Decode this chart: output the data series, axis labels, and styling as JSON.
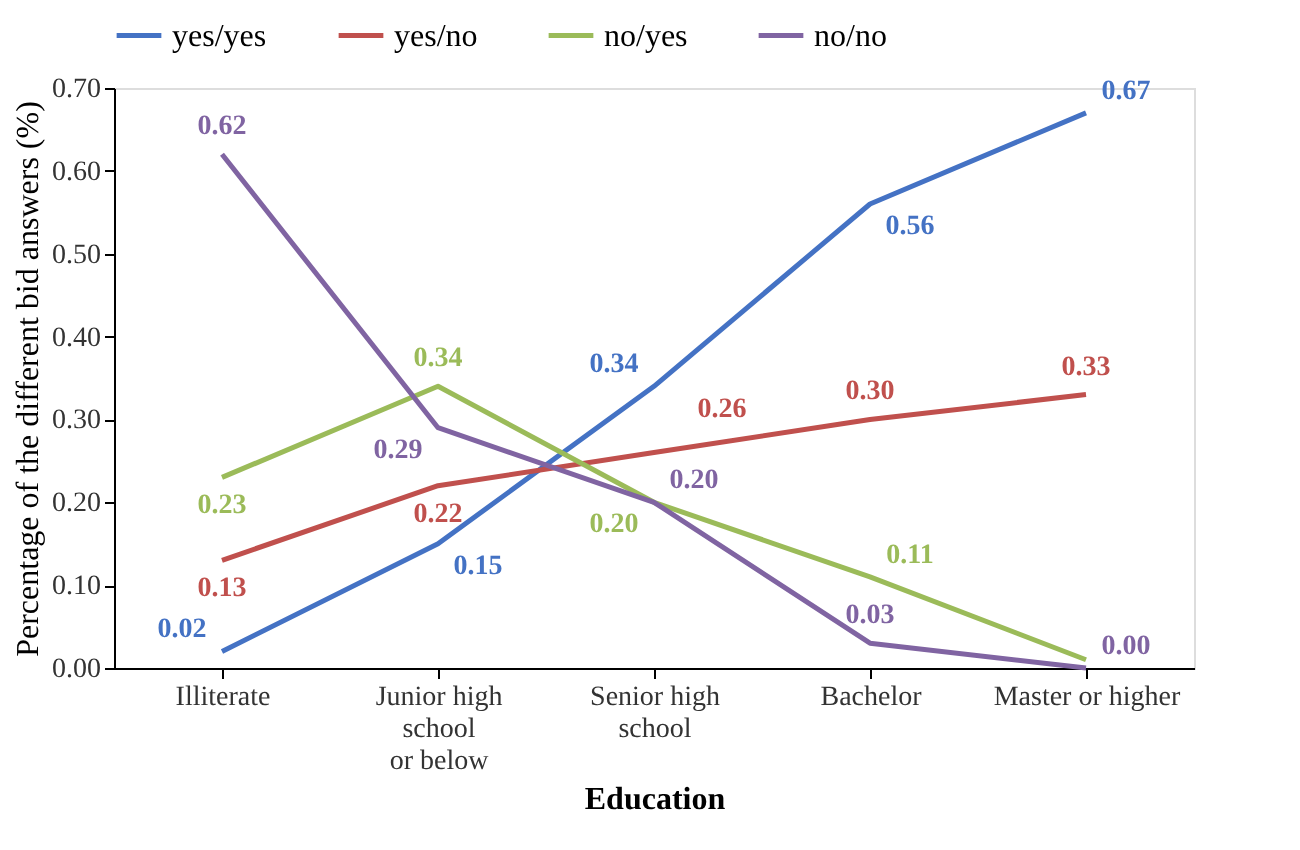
{
  "chart_data": {
    "type": "line",
    "xlabel": "Education",
    "ylabel": "Percentage of the different bid answers (%)",
    "categories": [
      "Illiterate",
      "Junior high\nschool\nor below",
      "Senior high\nschool",
      "Bachelor",
      "Master or higher"
    ],
    "series": [
      {
        "name": "yes/yes",
        "color": "#4472c4",
        "values": [
          0.02,
          0.15,
          0.34,
          0.56,
          0.67
        ],
        "value_labels": [
          "0.02",
          "0.15",
          "0.34",
          "0.56",
          "0.67"
        ]
      },
      {
        "name": "yes/no",
        "color": "#c0504d",
        "values": [
          0.13,
          0.22,
          0.26,
          0.3,
          0.33
        ],
        "value_labels": [
          "0.13",
          "0.22",
          "0.26",
          "0.30",
          "0.33"
        ]
      },
      {
        "name": "no/yes",
        "color": "#9bbb59",
        "values": [
          0.23,
          0.34,
          0.2,
          0.11,
          0.01
        ],
        "value_labels": [
          "0.23",
          "0.34",
          "0.20",
          "0.11",
          null
        ]
      },
      {
        "name": "no/no",
        "color": "#8064a2",
        "values": [
          0.62,
          0.29,
          0.2,
          0.03,
          0.0
        ],
        "value_labels": [
          "0.62",
          "0.29",
          "0.20",
          "0.03",
          "0.00"
        ]
      }
    ],
    "ylim": [
      0,
      0.7
    ],
    "yticks": [
      {
        "value": 0,
        "label": "0.00"
      },
      {
        "value": 0.1,
        "label": "0.10"
      },
      {
        "value": 0.2,
        "label": "0.20"
      },
      {
        "value": 0.3,
        "label": "0.30"
      },
      {
        "value": 0.4,
        "label": "0.40"
      },
      {
        "value": 0.5,
        "label": "0.50"
      },
      {
        "value": 0.6,
        "label": "0.60"
      },
      {
        "value": 0.7,
        "label": "0.70"
      }
    ],
    "legend": "top",
    "grid": false,
    "marker": "none",
    "line_style": "solid"
  }
}
